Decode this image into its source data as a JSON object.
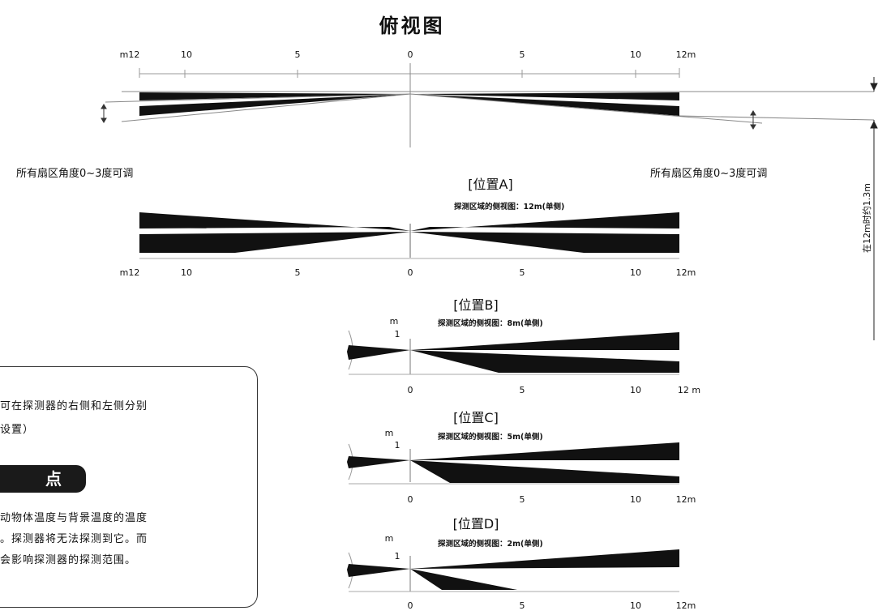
{
  "title": "俯视图",
  "top_view": {
    "ticks": [
      "m12",
      "10",
      "5",
      "0",
      "5",
      "10",
      "12m"
    ],
    "note_left": "所有扇区角度0~3度可调",
    "note_right": "所有扇区角度0~3度可调",
    "vertical_label": "在12m时约1.3m"
  },
  "positions": [
    {
      "label": "[位置A]",
      "caption": "探测区域的侧视图：12m(单侧)",
      "ticks": [
        "m12",
        "10",
        "5",
        "0",
        "5",
        "10",
        "12m"
      ]
    },
    {
      "label": "[位置B]",
      "caption": "探测区域的侧视图：8m(单侧)",
      "ticks": [
        "0",
        "5",
        "10",
        "12 m"
      ],
      "m_label": "m",
      "one_label": "1"
    },
    {
      "label": "[位置C]",
      "caption": "探测区域的侧视图：5m(单侧)",
      "ticks": [
        "0",
        "5",
        "10",
        "12m"
      ],
      "m_label": "m",
      "one_label": "1"
    },
    {
      "label": "[位置D]",
      "caption": "探测区域的侧视图：2m(单侧)",
      "ticks": [
        "0",
        "5",
        "10",
        "12m"
      ],
      "m_label": "m",
      "one_label": "1"
    }
  ],
  "tips": {
    "line1": "可在探测器的右侧和左侧分别",
    "line2": "设置）",
    "badge": "点",
    "line3": "动物体温度与背景温度的温度",
    "line4": "。探测器将无法探测到它。而",
    "line5": "会影响探测器的探测范围。"
  }
}
